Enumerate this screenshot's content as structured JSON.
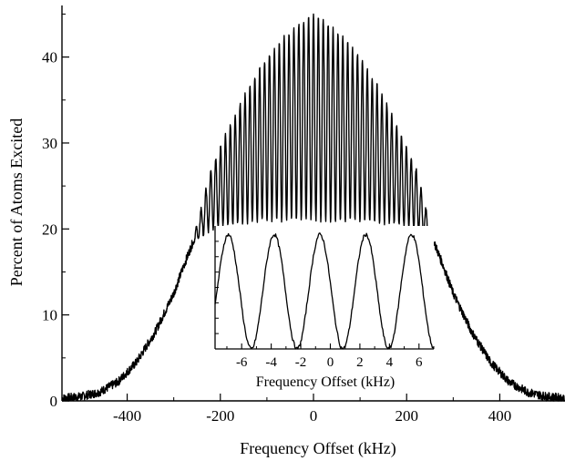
{
  "chart_data": [
    {
      "type": "line",
      "title": "",
      "xlabel": "Frequency Offset (kHz)",
      "ylabel": "Percent of Atoms Excited",
      "xlim": [
        -540,
        540
      ],
      "ylim": [
        0,
        46
      ],
      "x_ticks": [
        -400,
        -200,
        0,
        200,
        400
      ],
      "y_ticks": [
        0,
        10,
        20,
        30,
        40
      ],
      "grid": false,
      "legend": "none",
      "line_color": "#000000",
      "series": [
        {
          "description_points": "outer envelope (kHz, percent)",
          "x": [
            -540,
            -500,
            -460,
            -420,
            -380,
            -340,
            -300,
            -280,
            -260,
            -240,
            -220,
            -200,
            -180,
            -160,
            -140,
            -120,
            -100,
            -80,
            -60,
            -40,
            -20,
            0,
            20,
            40,
            60,
            80,
            100,
            120,
            140,
            160,
            180,
            200,
            220,
            240,
            260,
            280,
            300,
            340,
            380,
            420,
            460,
            500,
            540
          ],
          "y": [
            0.3,
            0.5,
            1.0,
            2.2,
            4.5,
            8.0,
            12.5,
            15.5,
            18.3,
            20.5,
            22.0,
            23.0,
            24.0,
            25.0,
            26.0,
            27.0,
            28.0,
            28.8,
            29.4,
            29.9,
            30.2,
            30.3,
            30.2,
            29.9,
            29.4,
            28.8,
            28.0,
            27.0,
            26.0,
            25.0,
            24.0,
            23.0,
            22.0,
            20.5,
            18.3,
            15.5,
            12.5,
            8.0,
            4.5,
            2.2,
            1.0,
            0.5,
            0.3
          ]
        }
      ],
      "fringe_upper_envelope": {
        "x": [
          -260,
          -220,
          -180,
          -140,
          -100,
          -60,
          -20,
          0,
          20,
          60,
          100,
          140,
          180,
          220,
          260
        ],
        "y": [
          18.3,
          27.0,
          32.0,
          36.5,
          40.0,
          42.5,
          44.3,
          44.8,
          44.3,
          42.5,
          40.0,
          36.5,
          32.0,
          27.0,
          18.3
        ]
      },
      "fringe_lower_envelope": {
        "x": [
          -260,
          -220,
          -180,
          -140,
          -100,
          -60,
          -20,
          0,
          20,
          60,
          100,
          140,
          180,
          220,
          260
        ],
        "y": [
          18.3,
          20.0,
          20.5,
          20.8,
          21.0,
          21.0,
          21.0,
          21.0,
          21.0,
          21.0,
          21.0,
          20.8,
          20.5,
          20.0,
          18.3
        ]
      },
      "fringe_period_khz": 10.5
    },
    {
      "type": "line",
      "title": "",
      "xlabel": "Frequency Offset (kHz)",
      "ylabel": "",
      "xlim": [
        -7.8,
        7.0
      ],
      "ylim": [
        0,
        1
      ],
      "x_ticks": [
        -6,
        -4,
        -2,
        0,
        2,
        4,
        6
      ],
      "grid": false,
      "legend": "none",
      "series": [
        {
          "description_points": "inset fringes: cosine with peaks at these offsets (kHz)",
          "peaks_x": [
            -6.9,
            -3.7,
            -0.6,
            2.5,
            5.5
          ],
          "period": 3.1,
          "peak_value": 0.93,
          "minimum_value": 0.0
        }
      ]
    }
  ]
}
